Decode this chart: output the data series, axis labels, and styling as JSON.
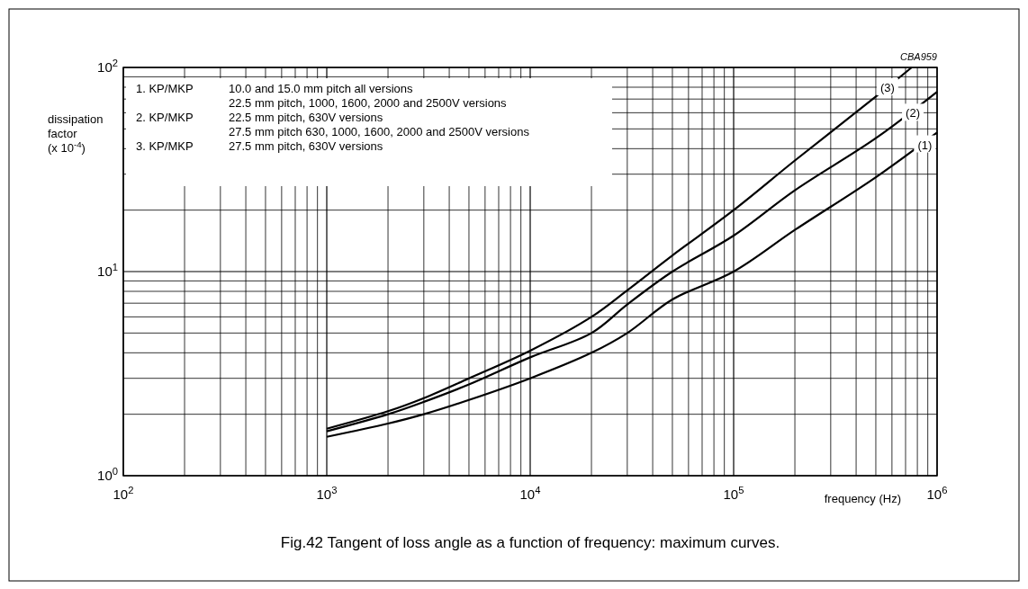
{
  "chart_data": {
    "type": "line",
    "title": "Fig.42  Tangent of loss angle as a function of frequency: maximum curves.",
    "xlabel": "frequency (Hz)",
    "ylabel": "dissipation factor (x 10$^{-4}$)",
    "log": "xy",
    "grid": true,
    "marker": "none",
    "line_style": "solid",
    "xlim": [
      100,
      1000000
    ],
    "ylim": [
      1,
      100
    ],
    "xticks": [
      {
        "value": 100,
        "label": "10$^{2}$"
      },
      {
        "value": 200,
        "label": null
      },
      {
        "value": 300,
        "label": null
      },
      {
        "value": 400,
        "label": null
      },
      {
        "value": 500,
        "label": null
      },
      {
        "value": 600,
        "label": null
      },
      {
        "value": 700,
        "label": null
      },
      {
        "value": 800,
        "label": null
      },
      {
        "value": 900,
        "label": null
      },
      {
        "value": 1000,
        "label": "10$^{3}$"
      },
      {
        "value": 2000,
        "label": null
      },
      {
        "value": 3000,
        "label": null
      },
      {
        "value": 4000,
        "label": null
      },
      {
        "value": 5000,
        "label": null
      },
      {
        "value": 6000,
        "label": null
      },
      {
        "value": 7000,
        "label": null
      },
      {
        "value": 8000,
        "label": null
      },
      {
        "value": 9000,
        "label": null
      },
      {
        "value": 10000,
        "label": "10$^{4}$"
      },
      {
        "value": 20000,
        "label": null
      },
      {
        "value": 30000,
        "label": null
      },
      {
        "value": 40000,
        "label": null
      },
      {
        "value": 50000,
        "label": null
      },
      {
        "value": 60000,
        "label": null
      },
      {
        "value": 70000,
        "label": null
      },
      {
        "value": 80000,
        "label": null
      },
      {
        "value": 90000,
        "label": null
      },
      {
        "value": 100000,
        "label": "10$^{5}$"
      },
      {
        "value": 200000,
        "label": null
      },
      {
        "value": 300000,
        "label": null
      },
      {
        "value": 400000,
        "label": null
      },
      {
        "value": 500000,
        "label": null
      },
      {
        "value": 600000,
        "label": null
      },
      {
        "value": 700000,
        "label": null
      },
      {
        "value": 800000,
        "label": null
      },
      {
        "value": 900000,
        "label": null
      },
      {
        "value": 1000000,
        "label": "10$^{6}$"
      }
    ],
    "yticks": [
      {
        "value": 1,
        "label": "10$^{0}$"
      },
      {
        "value": 2,
        "label": null
      },
      {
        "value": 3,
        "label": null
      },
      {
        "value": 4,
        "label": null
      },
      {
        "value": 5,
        "label": null
      },
      {
        "value": 6,
        "label": null
      },
      {
        "value": 7,
        "label": null
      },
      {
        "value": 8,
        "label": null
      },
      {
        "value": 9,
        "label": null
      },
      {
        "value": 10,
        "label": "10$^{1}$"
      },
      {
        "value": 20,
        "label": null
      },
      {
        "value": 30,
        "label": null
      },
      {
        "value": 40,
        "label": null
      },
      {
        "value": 50,
        "label": null
      },
      {
        "value": 60,
        "label": null
      },
      {
        "value": 70,
        "label": null
      },
      {
        "value": 80,
        "label": null
      },
      {
        "value": 90,
        "label": null
      },
      {
        "value": 100,
        "label": "10$^{2}$"
      }
    ],
    "series": [
      {
        "color": "#000000",
        "x": [
          1000,
          2000,
          3000,
          5000,
          10000,
          20000,
          30000,
          50000,
          100000,
          200000,
          500000,
          1000000
        ],
        "values": [
          1.55,
          1.8,
          2.0,
          2.35,
          3.0,
          4.0,
          5.0,
          7.3,
          10,
          16,
          29,
          48
        ]
      },
      {
        "color": "#000000",
        "x": [
          1000,
          2000,
          3000,
          5000,
          10000,
          20000,
          30000,
          50000,
          100000,
          200000,
          500000,
          1000000
        ],
        "values": [
          1.65,
          2.0,
          2.3,
          2.8,
          3.8,
          5.0,
          6.9,
          10,
          15,
          25,
          45,
          76
        ]
      },
      {
        "color": "#000000",
        "x": [
          1000,
          2000,
          3000,
          5000,
          10000,
          20000,
          30000,
          50000,
          100000,
          200000,
          500000,
          750000
        ],
        "values": [
          1.7,
          2.07,
          2.4,
          3.0,
          4.1,
          6.0,
          8.1,
          12,
          20,
          35,
          72,
          100
        ]
      }
    ],
    "annotations": [
      "CBA959",
      "1. KP/MKP\t10.0 and 15.0 mm pitch all versions",
      "\t22.5 mm pitch, 1000, 1600, 2000 and 2500V versions",
      "2. KP/MKP\t22.5 mm pitch, 630V versions",
      "\t27.5 mm pitch 630, 1000, 1600, 2000 and 2500V versions",
      "3. KP/MKP\t27.5 mm pitch, 630V versions",
      {
        "text": "(1)",
        "x": 870000,
        "y": 42
      },
      {
        "text": "(2)",
        "x": 760000,
        "y": 60
      },
      {
        "text": "(3)",
        "x": 570000,
        "y": 80
      }
    ]
  }
}
